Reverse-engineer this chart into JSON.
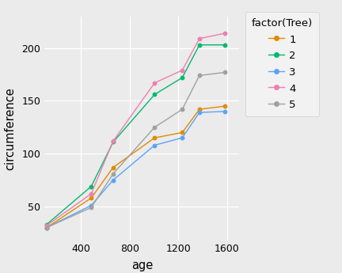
{
  "age": [
    118,
    484,
    664,
    1004,
    1231,
    1372,
    1582
  ],
  "trees": {
    "1": [
      30,
      58,
      87,
      115,
      120,
      142,
      145
    ],
    "2": [
      33,
      69,
      111,
      156,
      172,
      203,
      203
    ],
    "3": [
      30,
      51,
      75,
      108,
      115,
      139,
      140
    ],
    "4": [
      32,
      62,
      112,
      167,
      179,
      209,
      214
    ],
    "5": [
      30,
      49,
      81,
      125,
      142,
      174,
      177
    ]
  },
  "colors": {
    "1": "#E08B00",
    "2": "#00BA6C",
    "3": "#5BA4F5",
    "4": "#F07EB0",
    "5": "#A0A0A0"
  },
  "xlabel": "age",
  "ylabel": "circumference",
  "legend_title": "factor(Tree)",
  "bg_color": "#EBEBEB",
  "panel_bg": "#EBEBEB",
  "grid_color": "#FFFFFF",
  "legend_bg": "#F2F2F2",
  "xlim": [
    100,
    1700
  ],
  "ylim": [
    18,
    230
  ],
  "xticks": [
    400,
    800,
    1200,
    1600
  ],
  "yticks": [
    50,
    100,
    150,
    200
  ]
}
